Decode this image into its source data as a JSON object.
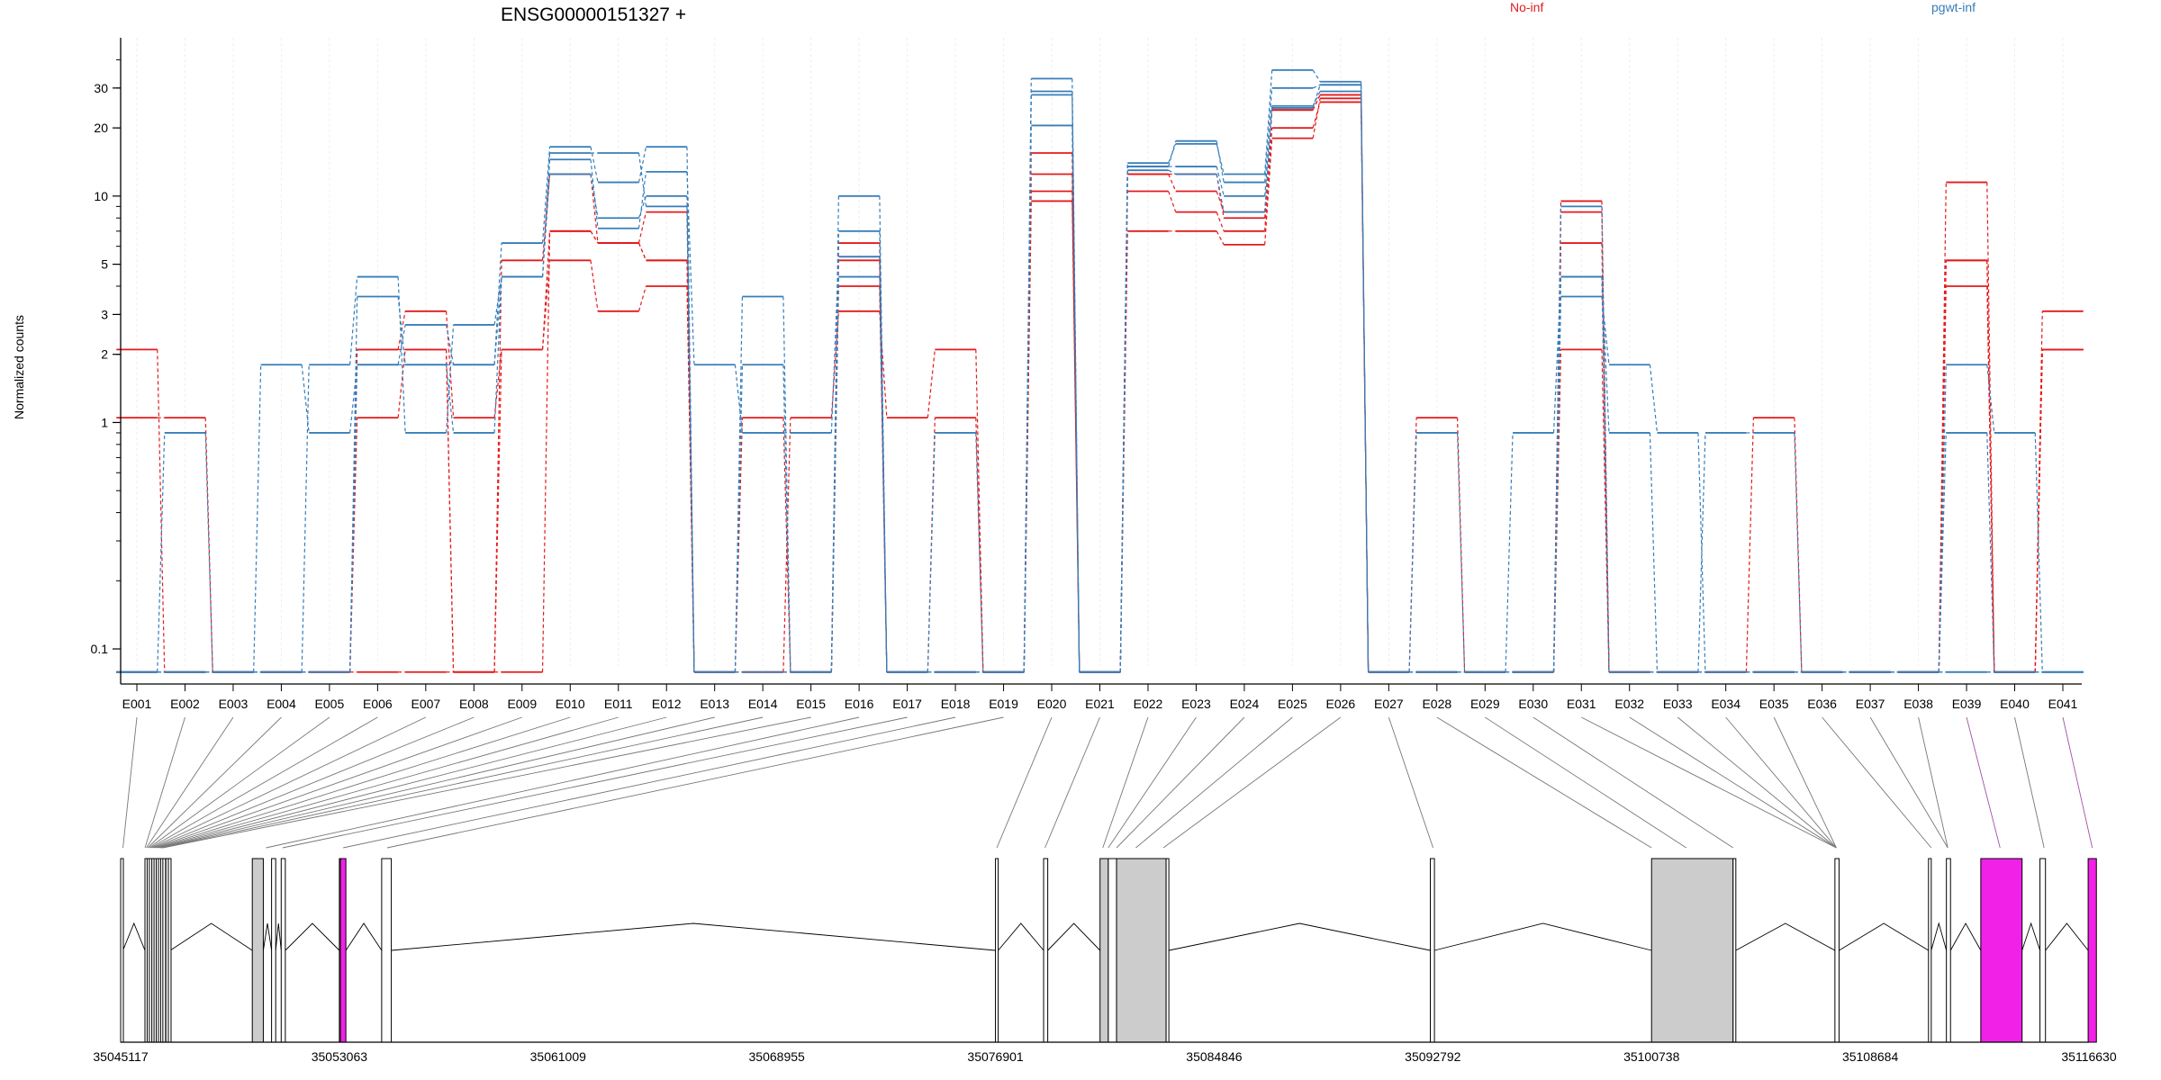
{
  "chart_data": {
    "type": "line",
    "title": "ENSG00000151327 +",
    "ylabel": "Normalized counts",
    "yscale": "log",
    "ylim": [
      0.07,
      50
    ],
    "yticks": [
      {
        "v": 0.1,
        "label": "0.1"
      },
      {
        "v": 1,
        "label": "1"
      },
      {
        "v": 2,
        "label": "2"
      },
      {
        "v": 3,
        "label": "3"
      },
      {
        "v": 5,
        "label": "5"
      },
      {
        "v": 10,
        "label": "10"
      },
      {
        "v": 20,
        "label": "20"
      },
      {
        "v": 30,
        "label": "30"
      }
    ],
    "zero_floor": 0.079,
    "legend": [
      {
        "label": "No-inf",
        "color": "#e41a1c"
      },
      {
        "label": "pgwt-inf",
        "color": "#377eb8"
      }
    ],
    "legend_position": "top-right",
    "grid": true,
    "categories": [
      "E001",
      "E002",
      "E003",
      "E004",
      "E005",
      "E006",
      "E007",
      "E008",
      "E009",
      "E010",
      "E011",
      "E012",
      "E013",
      "E014",
      "E015",
      "E016",
      "E017",
      "E018",
      "E019",
      "E020",
      "E021",
      "E022",
      "E023",
      "E024",
      "E025",
      "E026",
      "E027",
      "E028",
      "E029",
      "E030",
      "E031",
      "E032",
      "E033",
      "E034",
      "E035",
      "E036",
      "E037",
      "E038",
      "E039",
      "E040",
      "E041"
    ],
    "exon_types": [
      "normal",
      "normal",
      "normal",
      "normal",
      "normal",
      "normal",
      "normal",
      "normal",
      "normal",
      "normal",
      "normal",
      "normal",
      "normal",
      "normal",
      "normal",
      "normal",
      "normal",
      "normal",
      "normal",
      "normal",
      "normal",
      "normal",
      "normal",
      "normal",
      "normal",
      "normal",
      "normal",
      "normal",
      "normal",
      "normal",
      "normal",
      "normal",
      "normal",
      "normal",
      "normal",
      "normal",
      "normal",
      "normal",
      "highlight",
      "normal",
      "highlight"
    ],
    "series": [
      {
        "group": "No-inf",
        "color": "#e41a1c",
        "values": [
          2.1,
          0,
          0,
          0,
          0,
          1.05,
          2.1,
          0,
          0,
          7,
          6.2,
          5.2,
          0,
          0,
          1.05,
          3.1,
          1.05,
          2.1,
          0,
          9.5,
          0,
          7,
          7,
          6.1,
          18,
          27,
          0,
          1.05,
          0,
          0,
          2.1,
          0,
          0,
          0,
          0,
          0,
          0,
          0,
          4,
          0,
          2.1
        ]
      },
      {
        "group": "No-inf",
        "color": "#e41a1c",
        "values": [
          1.05,
          1.05,
          0,
          0,
          0,
          2.1,
          3.1,
          1.05,
          2.1,
          5.2,
          3.1,
          4,
          0,
          1.05,
          0,
          4,
          0,
          1.05,
          0,
          10.5,
          0,
          10.5,
          8.5,
          7,
          20,
          26,
          0,
          0,
          0,
          0,
          6.2,
          0,
          0,
          0,
          1.05,
          0,
          0,
          0,
          5.2,
          0,
          3.1
        ]
      },
      {
        "group": "No-inf",
        "color": "#e41a1c",
        "values": [
          0,
          0,
          0,
          0,
          0,
          2.1,
          2.1,
          0,
          5.2,
          12.5,
          6.2,
          8.5,
          0,
          0,
          0,
          6.2,
          0,
          0,
          0,
          12.5,
          0,
          12.5,
          10.5,
          8.5,
          24,
          28,
          0,
          0,
          0,
          0,
          8.5,
          0,
          0,
          0,
          0,
          0,
          0,
          0,
          11.5,
          0,
          2.1
        ]
      },
      {
        "group": "No-inf",
        "color": "#e41a1c",
        "values": [
          0,
          0,
          0,
          0,
          0,
          0,
          0,
          0,
          2.1,
          7,
          6.2,
          5.2,
          0,
          0,
          0,
          5.2,
          0,
          0,
          0,
          15.5,
          0,
          12.5,
          12.5,
          8,
          24,
          28,
          0,
          0,
          0,
          0,
          9.5,
          0,
          0,
          0,
          0,
          0,
          0,
          0,
          5.2,
          0,
          2.1
        ]
      },
      {
        "group": "pgwt-inf",
        "color": "#377eb8",
        "values": [
          0,
          0.9,
          0,
          0,
          1.8,
          4.4,
          0.9,
          2.7,
          4.4,
          14.5,
          7.2,
          12.8,
          1.8,
          0.9,
          0.9,
          5.4,
          0,
          0.9,
          0,
          20.5,
          0,
          13.5,
          17.5,
          11.5,
          30,
          31,
          0,
          0.9,
          0,
          0.9,
          4.4,
          0.9,
          0,
          0.9,
          0.9,
          0,
          0,
          0,
          0.9,
          0,
          0
        ]
      },
      {
        "group": "pgwt-inf",
        "color": "#377eb8",
        "values": [
          0,
          0,
          0,
          1.8,
          0.9,
          1.8,
          2.7,
          1.8,
          6.2,
          16.5,
          11.5,
          16.5,
          0,
          1.8,
          0,
          4.4,
          0,
          0,
          0,
          28,
          0,
          14,
          17,
          12.5,
          36,
          32,
          0,
          0,
          0,
          0,
          3.6,
          1.8,
          0.9,
          0,
          0,
          0,
          0,
          0,
          1.8,
          0.9,
          0
        ]
      },
      {
        "group": "pgwt-inf",
        "color": "#377eb8",
        "values": [
          0,
          0,
          0,
          0,
          0,
          3.6,
          1.8,
          0.9,
          4.4,
          12.5,
          8,
          10,
          0,
          3.6,
          0,
          7,
          0,
          0,
          0,
          33,
          0,
          13.5,
          13.5,
          10,
          25,
          29,
          0,
          0,
          0,
          0,
          9,
          0,
          0,
          0,
          0,
          0,
          0,
          0,
          0,
          0,
          0
        ]
      },
      {
        "group": "pgwt-inf",
        "color": "#377eb8",
        "values": [
          0,
          0,
          0,
          0,
          0,
          1.8,
          1.8,
          1.8,
          4.4,
          15.5,
          15.5,
          9,
          0,
          0,
          0,
          10,
          0,
          0,
          0,
          29,
          0,
          13,
          12.5,
          8.5,
          24.5,
          31,
          0,
          0,
          0,
          0,
          4.4,
          0,
          0,
          0,
          0,
          0,
          0,
          0,
          0,
          0,
          0
        ]
      }
    ],
    "gene_model": {
      "range": [
        35045117,
        35116630
      ],
      "ticks": [
        "35045117",
        "35053063",
        "35061009",
        "35068955",
        "35076901",
        "35084846",
        "35092792",
        "35100738",
        "35108684",
        "35116630"
      ],
      "exons": [
        [
          35045117,
          35045200
        ],
        [
          35046000,
          35046050
        ],
        [
          35046080,
          35046130
        ],
        [
          35046160,
          35046220
        ],
        [
          35046250,
          35046300
        ],
        [
          35046330,
          35046380
        ],
        [
          35046410,
          35046460
        ],
        [
          35046490,
          35046540
        ],
        [
          35046570,
          35046620
        ],
        [
          35046650,
          35046720
        ],
        [
          35046760,
          35046810
        ],
        [
          35046850,
          35046920
        ],
        [
          35049900,
          35050300
        ],
        [
          35050600,
          35050750
        ],
        [
          35050950,
          35051100
        ],
        [
          35053063,
          35053100
        ],
        [
          35053100,
          35053300
        ],
        [
          35054600,
          35054950
        ],
        [
          35076901,
          35077000
        ],
        [
          35078650,
          35078800
        ],
        [
          35080700,
          35081000
        ],
        [
          35081000,
          35081300
        ],
        [
          35081300,
          35083100
        ],
        [
          35083100,
          35083200
        ],
        [
          35092700,
          35092850
        ],
        [
          35100738,
          35103700
        ],
        [
          35103700,
          35103800
        ],
        [
          35107400,
          35107550
        ],
        [
          35110800,
          35110900
        ],
        [
          35111450,
          35111600
        ],
        [
          35112700,
          35114200
        ],
        [
          35114850,
          35115050
        ],
        [
          35116600,
          35116900
        ]
      ],
      "exon_fill": [
        "normal",
        "normal",
        "normal",
        "normal",
        "normal",
        "normal",
        "normal",
        "normal",
        "normal",
        "normal",
        "normal",
        "normal",
        "shaded",
        "normal",
        "normal",
        "normal",
        "highlight",
        "normal",
        "normal",
        "normal",
        "shaded",
        "normal",
        "shaded",
        "normal",
        "normal",
        "shaded",
        "normal",
        "normal",
        "normal",
        "normal",
        "highlight",
        "normal",
        "highlight"
      ],
      "exon_link_coord": [
        35045200,
        35046000,
        35046050,
        35046100,
        35046150,
        35046200,
        35046250,
        35046300,
        35046350,
        35046400,
        35046450,
        35046500,
        35046550,
        35046600,
        35046650,
        35050400,
        35051000,
        35053200,
        35054800,
        35076950,
        35078700,
        35080800,
        35081000,
        35081300,
        35082000,
        35083000,
        35092800,
        35100738,
        35102000,
        35103700,
        35107450,
        35107450,
        35107450,
        35107450,
        35107450,
        35110900,
        35111500,
        35111500,
        35113400,
        35115000,
        35116750
      ]
    }
  }
}
